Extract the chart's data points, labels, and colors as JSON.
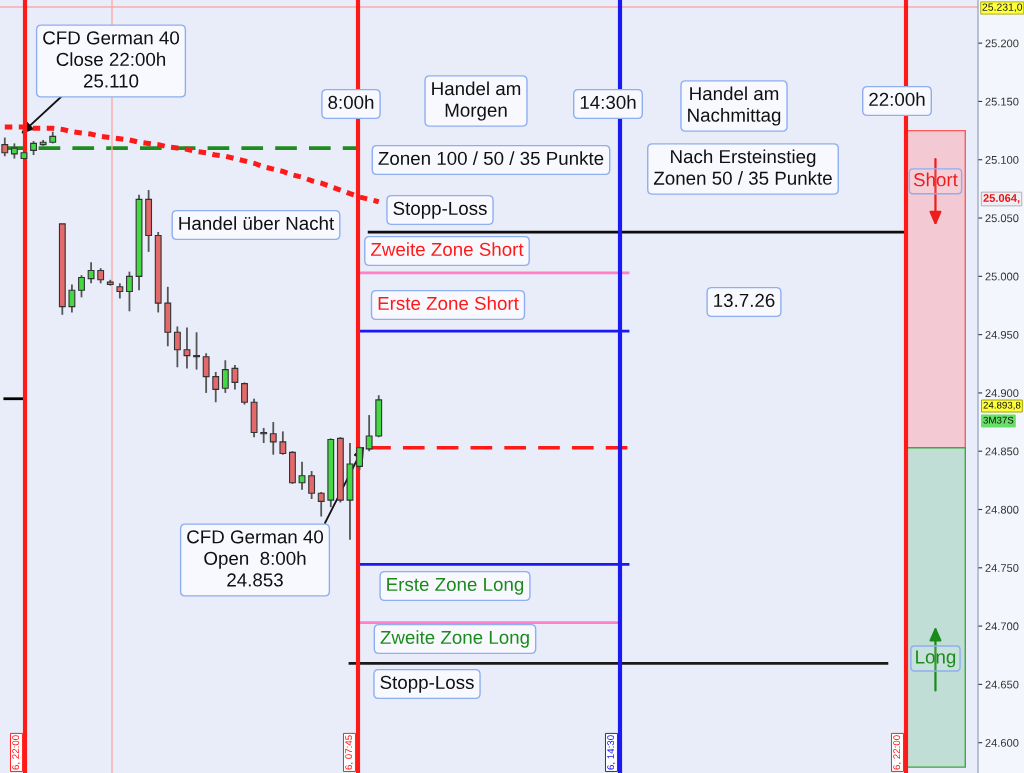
{
  "chart_data": {
    "type": "candlestick",
    "categories": [
      null,
      null,
      null,
      null,
      null,
      null,
      null,
      null,
      null,
      null,
      null,
      null,
      null,
      null,
      null,
      null,
      null,
      null,
      null,
      null,
      null,
      null,
      null,
      null,
      null,
      null,
      null,
      null,
      null,
      null,
      null,
      null,
      null,
      null,
      null,
      null,
      null,
      null,
      null,
      null,
      null,
      null,
      null,
      null,
      null,
      null,
      null,
      null,
      null,
      null,
      null,
      null,
      null,
      null,
      null,
      null,
      null,
      null,
      null,
      null,
      null,
      null,
      null,
      null,
      null,
      null,
      null,
      null,
      null,
      null,
      null,
      null,
      null,
      null,
      null,
      null,
      null,
      null,
      null,
      null,
      null,
      null,
      null,
      null,
      null,
      null,
      null,
      null,
      null,
      null,
      null,
      null,
      null,
      null,
      null,
      null,
      null,
      null,
      null,
      null,
      null,
      null
    ],
    "ohlc": [
      [
        25113,
        25119,
        25103,
        25106
      ],
      [
        25105,
        25114,
        25101,
        25110
      ],
      [
        25101,
        25107,
        25100,
        25106
      ],
      [
        25108,
        25116,
        25104,
        25114
      ],
      [
        25113,
        25117,
        25112,
        25115
      ],
      [
        25115,
        25124,
        25114,
        25120
      ],
      [
        25045,
        25045,
        24967,
        24974
      ],
      [
        24974,
        24993,
        24969,
        24988
      ],
      [
        24988,
        25001,
        24982,
        24999
      ],
      [
        24998,
        25012,
        24994,
        25005
      ],
      [
        25005,
        25007,
        24994,
        24997
      ],
      [
        24995,
        24997,
        24992,
        24993
      ],
      [
        24991,
        24994,
        24981,
        24987
      ],
      [
        24987,
        25004,
        24970,
        25000
      ],
      [
        25000,
        25070,
        24988,
        25066
      ],
      [
        25066,
        25074,
        25021,
        25035
      ],
      [
        25035,
        25038,
        24969,
        24977
      ],
      [
        24977,
        24991,
        24940,
        24952
      ],
      [
        24952,
        24957,
        24922,
        24937
      ],
      [
        24937,
        24956,
        24921,
        24932
      ],
      [
        24932,
        24952,
        24920,
        24931
      ],
      [
        24931,
        24934,
        24900,
        24914
      ],
      [
        24914,
        24918,
        24892,
        24903
      ],
      [
        24904,
        24928,
        24900,
        24920
      ],
      [
        24921,
        24924,
        24903,
        24909
      ],
      [
        24908,
        24909,
        24890,
        24892
      ],
      [
        24892,
        24895,
        24862,
        24866
      ],
      [
        24866,
        24870,
        24857,
        24865
      ],
      [
        24865,
        24875,
        24847,
        24858
      ],
      [
        24858,
        24867,
        24847,
        24848
      ],
      [
        24849,
        24850,
        24822,
        24823
      ],
      [
        24823,
        24841,
        24817,
        24829
      ],
      [
        24829,
        24833,
        24809,
        24814
      ],
      [
        24814,
        24815,
        24794,
        24807
      ],
      [
        24808,
        24861,
        24802,
        24860
      ],
      [
        24861,
        24862,
        24806,
        24808
      ],
      [
        24808,
        24857,
        24774,
        24839
      ],
      [
        24837,
        24854,
        24834,
        24853
      ],
      [
        24852,
        24881,
        24850,
        24863
      ],
      [
        24863,
        24898,
        24862,
        24894
      ],
      null,
      null,
      null,
      null,
      null,
      null,
      null,
      null,
      null,
      null,
      null,
      null,
      null,
      null,
      null,
      null,
      null,
      null,
      null,
      null,
      null,
      null,
      null,
      null,
      null,
      null,
      null,
      null,
      null,
      null,
      null,
      null,
      null,
      null,
      null,
      null,
      null,
      null,
      null,
      null,
      null,
      null,
      null,
      null,
      null,
      null,
      null,
      null,
      null,
      null,
      null,
      null,
      null,
      null,
      null,
      null,
      null,
      null,
      null,
      null,
      null,
      null
    ],
    "colors": [
      "#e26a6a",
      "#44d844",
      "#44d844",
      "#44d844",
      "#44d844",
      "#44d844",
      "#e26a6a",
      "#44d844",
      "#44d844",
      "#44d844",
      "#e26a6a",
      "#e26a6a",
      "#e26a6a",
      "#44d844",
      "#44d844",
      "#e26a6a",
      "#e26a6a",
      "#e26a6a",
      "#e26a6a",
      "#e26a6a",
      "#e26a6a",
      "#e26a6a",
      "#e26a6a",
      "#44d844",
      "#e26a6a",
      "#e26a6a",
      "#e26a6a",
      "#e26a6a",
      "#e26a6a",
      "#e26a6a",
      "#e26a6a",
      "#44d844",
      "#e26a6a",
      "#e26a6a",
      "#44d844",
      "#e26a6a",
      "#44d844",
      "#44d844",
      "#44d844",
      "#44d844",
      null,
      null,
      null,
      null,
      null,
      null,
      null,
      null,
      null,
      null,
      null,
      null,
      null,
      null,
      null,
      null,
      null,
      null,
      null,
      null,
      null,
      null,
      null,
      null,
      null,
      null,
      null,
      null,
      null,
      null,
      null,
      null,
      null,
      null,
      null,
      null,
      null,
      null,
      null,
      null,
      null,
      null,
      null,
      null,
      null,
      null,
      null,
      null,
      null,
      null,
      null,
      null,
      null,
      null,
      null,
      null,
      null,
      null,
      null,
      null,
      null,
      null
    ],
    "series": [
      {
        "type": "line",
        "color": "#1e8c1e",
        "line_style": "dashed",
        "values": [
          25110,
          25110,
          25110,
          25110,
          25110,
          25110,
          25110,
          25110,
          25110,
          25110,
          25110,
          25110,
          25110,
          25110,
          25110,
          25110,
          25110,
          25110,
          25110,
          25110,
          25110,
          25110,
          25110,
          25110,
          25110,
          25110,
          25110,
          25110,
          25110,
          25110,
          25110,
          25110,
          25110,
          25110,
          25110,
          25110,
          25110,
          25110,
          null,
          null,
          null,
          null,
          null,
          null,
          null,
          null,
          null,
          null,
          null,
          null,
          null,
          null,
          null,
          null,
          null,
          null,
          null,
          null,
          null,
          null,
          null,
          null,
          null,
          null,
          null,
          null,
          null,
          null,
          null,
          null,
          null,
          null,
          null,
          null,
          null,
          null,
          null,
          null,
          null,
          null,
          null,
          null,
          null,
          null,
          null,
          null,
          null,
          null,
          null,
          null,
          null,
          null,
          null,
          null,
          null,
          null,
          null,
          null,
          null,
          null,
          null,
          null
        ]
      },
      {
        "type": "line",
        "color": "#ff1a1a",
        "line_style": "dotted",
        "values": [
          25128,
          25128,
          25128,
          25127,
          25127,
          25127,
          25126,
          25124,
          25123,
          25122,
          25120,
          25119,
          25118,
          25117,
          25115,
          25114,
          25113,
          25111,
          25110,
          25109,
          25107,
          25106,
          25104,
          25103,
          25101,
          25099,
          25097,
          25094,
          25092,
          25090,
          25087,
          25085,
          25082,
          25080,
          25077,
          25074,
          25071,
          25068,
          25066,
          25064,
          null,
          null,
          null,
          null,
          null,
          null,
          null,
          null,
          null,
          null,
          null,
          null,
          null,
          null,
          null,
          null,
          null,
          null,
          null,
          null,
          null,
          null,
          null,
          null,
          null,
          null,
          null,
          null,
          null,
          null,
          null,
          null,
          null,
          null,
          null,
          null,
          null,
          null,
          null,
          null,
          null,
          null,
          null,
          null,
          null,
          null,
          null,
          null,
          null,
          null,
          null,
          null,
          null,
          null,
          null,
          null,
          null,
          null,
          null,
          null,
          null,
          null
        ]
      },
      {
        "type": "line",
        "color": "#000000",
        "line_style": "solid",
        "values": [
          24895,
          24895,
          24895,
          null,
          null,
          null,
          null,
          null,
          null,
          null,
          null,
          null,
          null,
          null,
          null,
          null,
          null,
          null,
          null,
          null,
          null,
          null,
          null,
          null,
          null,
          null,
          null,
          null,
          null,
          null,
          null,
          null,
          null,
          null,
          null,
          null,
          null,
          null,
          null,
          null,
          null,
          null,
          null,
          null,
          null,
          null,
          null,
          null,
          null,
          null,
          null,
          null,
          null,
          null,
          null,
          null,
          null,
          null,
          null,
          null,
          null,
          null,
          null,
          null,
          null,
          null,
          null,
          null,
          null,
          null,
          null,
          null,
          null,
          null,
          null,
          null,
          null,
          null,
          null,
          null,
          null,
          null,
          null,
          null,
          null,
          null,
          null,
          null,
          null,
          null,
          null,
          null,
          null,
          null,
          null,
          null,
          null,
          null,
          null,
          null,
          null,
          null
        ]
      },
      {
        "type": "line",
        "color": "#0d0d0d",
        "line_style": "solid",
        "values": [
          null,
          null,
          null,
          null,
          null,
          null,
          null,
          null,
          null,
          null,
          null,
          null,
          null,
          null,
          null,
          null,
          null,
          null,
          null,
          null,
          null,
          null,
          null,
          null,
          null,
          null,
          null,
          null,
          null,
          null,
          null,
          null,
          null,
          null,
          null,
          null,
          null,
          null,
          25038,
          25038,
          25038,
          25038,
          25038,
          25038,
          25038,
          25038,
          25038,
          25038,
          25038,
          25038,
          25038,
          25038,
          25038,
          25038,
          25038,
          25038,
          25038,
          25038,
          25038,
          25038,
          25038,
          25038,
          25038,
          25038,
          25038,
          25038,
          25038,
          25038,
          25038,
          25038,
          25038,
          25038,
          25038,
          25038,
          25038,
          25038,
          25038,
          25038,
          25038,
          25038,
          25038,
          25038,
          25038,
          25038,
          25038,
          25038,
          25038,
          25038,
          25038,
          25038,
          25038,
          25038,
          25038,
          25038,
          25038,
          null,
          null,
          null,
          null,
          null,
          null,
          null
        ]
      },
      {
        "type": "line",
        "color": "#ff80c8",
        "line_style": "solid",
        "values": [
          null,
          null,
          null,
          null,
          null,
          null,
          null,
          null,
          null,
          null,
          null,
          null,
          null,
          null,
          null,
          null,
          null,
          null,
          null,
          null,
          null,
          null,
          null,
          null,
          null,
          null,
          null,
          null,
          null,
          null,
          null,
          null,
          null,
          null,
          null,
          null,
          null,
          25003,
          25003,
          25003,
          25003,
          25003,
          25003,
          25003,
          25003,
          25003,
          25003,
          25003,
          25003,
          25003,
          25003,
          25003,
          25003,
          25003,
          25003,
          25003,
          25003,
          25003,
          25003,
          25003,
          25003,
          25003,
          25003,
          25003,
          25003,
          25003,
          null,
          null,
          null,
          null,
          null,
          null,
          null,
          null,
          null,
          null,
          null,
          null,
          null,
          null,
          null,
          null,
          null,
          null,
          null,
          null,
          null,
          null,
          null,
          null,
          null,
          null,
          null,
          null,
          null,
          null,
          null,
          null,
          null,
          null,
          null,
          null
        ]
      },
      {
        "type": "line",
        "color": "#1a1af0",
        "line_style": "solid",
        "values": [
          null,
          null,
          null,
          null,
          null,
          null,
          null,
          null,
          null,
          null,
          null,
          null,
          null,
          null,
          null,
          null,
          null,
          null,
          null,
          null,
          null,
          null,
          null,
          null,
          null,
          null,
          null,
          null,
          null,
          null,
          null,
          null,
          null,
          null,
          null,
          null,
          null,
          24953,
          24953,
          24953,
          24953,
          24953,
          24953,
          24953,
          24953,
          24953,
          24953,
          24953,
          24953,
          24953,
          24953,
          24953,
          24953,
          24953,
          24953,
          24953,
          24953,
          24953,
          24953,
          24953,
          24953,
          24953,
          24953,
          24953,
          24953,
          24953,
          null,
          null,
          null,
          null,
          null,
          null,
          null,
          null,
          null,
          null,
          null,
          null,
          null,
          null,
          null,
          null,
          null,
          null,
          null,
          null,
          null,
          null,
          null,
          null,
          null,
          null,
          null,
          null,
          null,
          null,
          null,
          null,
          null,
          null,
          null,
          null
        ]
      },
      {
        "type": "line",
        "color": "#ff1a1a",
        "line_style": "dashed",
        "values": [
          null,
          null,
          null,
          null,
          null,
          null,
          null,
          null,
          null,
          null,
          null,
          null,
          null,
          null,
          null,
          null,
          null,
          null,
          null,
          null,
          null,
          null,
          null,
          null,
          null,
          null,
          null,
          null,
          null,
          null,
          null,
          null,
          null,
          null,
          null,
          null,
          null,
          null,
          24853,
          24853,
          24853,
          24853,
          24853,
          24853,
          24853,
          24853,
          24853,
          24853,
          24853,
          24853,
          24853,
          24853,
          24853,
          24853,
          24853,
          24853,
          24853,
          24853,
          24853,
          24853,
          24853,
          24853,
          24853,
          24853,
          24853,
          24853,
          null,
          null,
          null,
          null,
          null,
          null,
          null,
          null,
          null,
          null,
          null,
          null,
          null,
          null,
          null,
          null,
          null,
          null,
          null,
          null,
          null,
          null,
          null,
          null,
          null,
          null,
          null,
          null,
          null,
          null,
          null,
          null,
          null,
          null,
          null,
          null
        ]
      },
      {
        "type": "line",
        "color": "#1a1af0",
        "line_style": "solid",
        "values": [
          null,
          null,
          null,
          null,
          null,
          null,
          null,
          null,
          null,
          null,
          null,
          null,
          null,
          null,
          null,
          null,
          null,
          null,
          null,
          null,
          null,
          null,
          null,
          null,
          null,
          null,
          null,
          null,
          null,
          null,
          null,
          null,
          null,
          null,
          null,
          null,
          null,
          24753,
          24753,
          24753,
          24753,
          24753,
          24753,
          24753,
          24753,
          24753,
          24753,
          24753,
          24753,
          24753,
          24753,
          24753,
          24753,
          24753,
          24753,
          24753,
          24753,
          24753,
          24753,
          24753,
          24753,
          24753,
          24753,
          24753,
          24753,
          24753,
          null,
          null,
          null,
          null,
          null,
          null,
          null,
          null,
          null,
          null,
          null,
          null,
          null,
          null,
          null,
          null,
          null,
          null,
          null,
          null,
          null,
          null,
          null,
          null,
          null,
          null,
          null,
          null,
          null,
          null,
          null,
          null,
          null,
          null,
          null,
          null
        ]
      },
      {
        "type": "line",
        "color": "#ff80c8",
        "line_style": "solid",
        "values": [
          null,
          null,
          null,
          null,
          null,
          null,
          null,
          null,
          null,
          null,
          null,
          null,
          null,
          null,
          null,
          null,
          null,
          null,
          null,
          null,
          null,
          null,
          null,
          null,
          null,
          null,
          null,
          null,
          null,
          null,
          null,
          null,
          null,
          null,
          null,
          null,
          null,
          24703,
          24703,
          24703,
          24703,
          24703,
          24703,
          24703,
          24703,
          24703,
          24703,
          24703,
          24703,
          24703,
          24703,
          24703,
          24703,
          24703,
          24703,
          24703,
          24703,
          24703,
          24703,
          24703,
          24703,
          24703,
          24703,
          24703,
          24703,
          null,
          null,
          null,
          null,
          null,
          null,
          null,
          null,
          null,
          null,
          null,
          null,
          null,
          null,
          null,
          null,
          null,
          null,
          null,
          null,
          null,
          null,
          null,
          null,
          null,
          null,
          null,
          null,
          null,
          null,
          null,
          null,
          null,
          null,
          null,
          null,
          null
        ]
      },
      {
        "type": "line",
        "color": "#1a1a1a",
        "line_style": "solid",
        "values": [
          null,
          null,
          null,
          null,
          null,
          null,
          null,
          null,
          null,
          null,
          null,
          null,
          null,
          null,
          null,
          null,
          null,
          null,
          null,
          null,
          null,
          null,
          null,
          null,
          null,
          null,
          null,
          null,
          null,
          null,
          null,
          null,
          null,
          null,
          null,
          null,
          24668,
          24668,
          24668,
          24668,
          24668,
          24668,
          24668,
          24668,
          24668,
          24668,
          24668,
          24668,
          24668,
          24668,
          24668,
          24668,
          24668,
          24668,
          24668,
          24668,
          24668,
          24668,
          24668,
          24668,
          24668,
          24668,
          24668,
          24668,
          24668,
          24668,
          24668,
          24668,
          24668,
          24668,
          24668,
          24668,
          24668,
          24668,
          24668,
          24668,
          24668,
          24668,
          24668,
          24668,
          24668,
          24668,
          24668,
          24668,
          24668,
          24668,
          24668,
          24668,
          24668,
          24668,
          24668,
          24668,
          24668,
          null,
          null,
          null,
          null,
          null,
          null,
          null,
          null,
          null
        ]
      }
    ],
    "ylim": [
      24574,
      25237
    ],
    "yticks": [
      {
        "value": 24600,
        "label": "24.600"
      },
      {
        "value": 24650,
        "label": "24.650"
      },
      {
        "value": 24700,
        "label": "24.700"
      },
      {
        "value": 24750,
        "label": "24.750"
      },
      {
        "value": 24800,
        "label": "24.800"
      },
      {
        "value": 24850,
        "label": "24.850"
      },
      {
        "value": 24900,
        "label": "24.900"
      },
      {
        "value": 24950,
        "label": "24.950"
      },
      {
        "value": 25000,
        "label": "25.000"
      },
      {
        "value": 25050,
        "label": "25.050"
      },
      {
        "value": 25100,
        "label": "25.100"
      },
      {
        "value": 25150,
        "label": "25.150"
      },
      {
        "value": 25200,
        "label": "25.200"
      }
    ],
    "tick_labels": "y",
    "ref_lines": [
      {
        "axis": "y",
        "value": 25231,
        "label": "25.231,0",
        "color": "#ffaaaa"
      }
    ],
    "bands": [
      {
        "axis": "y",
        "from": 24853,
        "to": 25125,
        "label": "Short",
        "color": "#f3c9d3"
      },
      {
        "axis": "y",
        "from": 24579,
        "to": 24853,
        "label": "Long",
        "color": "#c0ddd6"
      }
    ],
    "annotations": [
      "CFD German 40\nClose 22:00h\n25.110",
      "CFD German 40\nOpen  8:00h\n24.853",
      "8:00h",
      "Handel am\nMorgen",
      "14:30h",
      "Handel am\nNachmittag",
      "22:00h",
      "Zonen 100 / 50 / 35 Punkte",
      "Nach Ersteinstieg\nZonen 50 / 35 Punkte",
      "Handel über Nacht",
      "13.7.26",
      "Stopp-Loss",
      "Zweite Zone Short",
      "Erste Zone Short",
      "Erste Zone Long",
      "Zweite Zone Long",
      "Stopp-Loss",
      "25.064,",
      "24.893,8",
      "3M37S",
      "6, 22:00",
      "6, 07:45",
      "6, 14:30",
      "6, 22:00"
    ]
  }
}
